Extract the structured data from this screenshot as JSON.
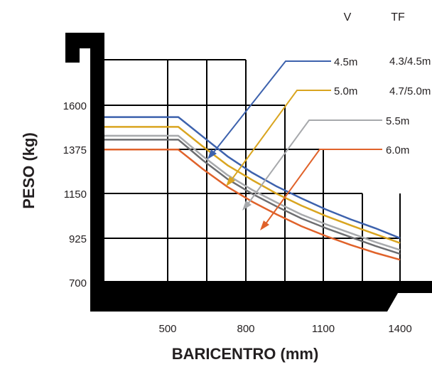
{
  "chart_data": {
    "type": "line",
    "xlabel": "BARICENTRO (mm)",
    "ylabel": "PESO (kg)",
    "x_ticks": [
      "500",
      "800",
      "1100",
      "1400"
    ],
    "y_ticks": [
      "1600",
      "1375",
      "1150",
      "925",
      "700"
    ],
    "xlim": [
      200,
      1400
    ],
    "ylim": [
      700,
      1600
    ],
    "grid": true,
    "legend_position": "top-right",
    "legend_headers": {
      "v": "V",
      "tf": "TF"
    },
    "series": [
      {
        "name": "4.5m",
        "tf": "4.3/4.5m",
        "color": "#3d62ad",
        "x": [
          200,
          500,
          600,
          700,
          800,
          900,
          1000,
          1100,
          1200,
          1300,
          1400
        ],
        "y": [
          1540,
          1540,
          1440,
          1340,
          1257,
          1187,
          1127,
          1070,
          1020,
          975,
          925
        ]
      },
      {
        "name": "5.0m",
        "tf": "4.7/5.0m",
        "color": "#d9a520",
        "x": [
          200,
          500,
          600,
          700,
          800,
          900,
          1000,
          1100,
          1200,
          1300,
          1400
        ],
        "y": [
          1490,
          1490,
          1390,
          1295,
          1220,
          1150,
          1090,
          1037,
          990,
          945,
          900
        ]
      },
      {
        "name": "5.5m",
        "tf": "",
        "color": "#a7a9ac",
        "x": [
          200,
          500,
          600,
          700,
          800,
          900,
          1000,
          1100,
          1200,
          1300,
          1400
        ],
        "y": [
          1445,
          1445,
          1340,
          1245,
          1170,
          1105,
          1045,
          995,
          950,
          905,
          865
        ]
      },
      {
        "name": "",
        "tf": "",
        "color": "#6d6e71",
        "x": [
          200,
          500,
          600,
          700,
          800,
          900,
          1000,
          1100,
          1200,
          1300,
          1400
        ],
        "y": [
          1425,
          1425,
          1320,
          1225,
          1150,
          1085,
          1025,
          975,
          930,
          885,
          845
        ]
      },
      {
        "name": "6.0m",
        "tf": "",
        "color": "#e0622a",
        "x": [
          200,
          500,
          600,
          700,
          800,
          900,
          1000,
          1100,
          1200,
          1300,
          1400
        ],
        "y": [
          1375,
          1375,
          1275,
          1185,
          1110,
          1045,
          985,
          935,
          890,
          850,
          815
        ]
      }
    ]
  }
}
